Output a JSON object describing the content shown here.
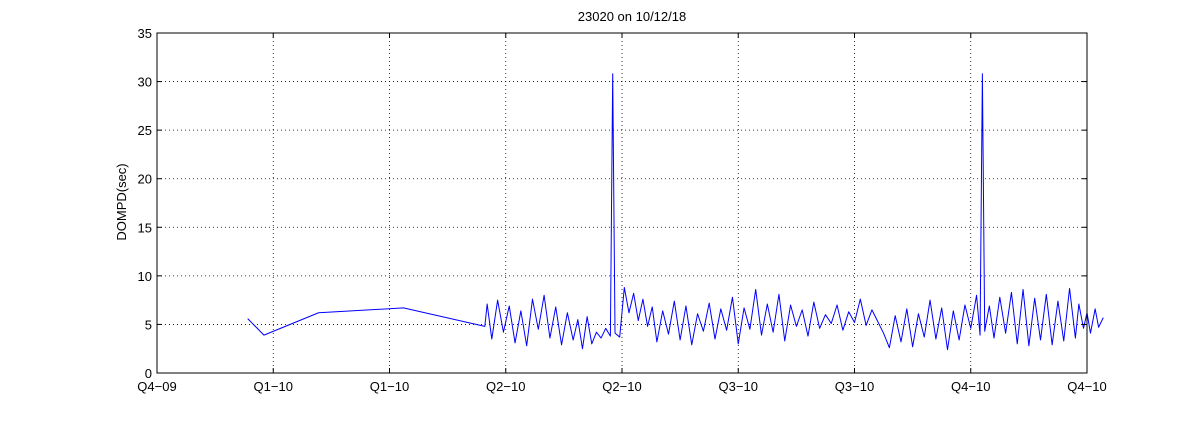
{
  "chart_data": {
    "type": "line",
    "title": "23020 on 10/12/18",
    "xlabel": "",
    "ylabel": "DOMPD(sec)",
    "x_tick_labels": [
      "Q4−09",
      "Q1−10",
      "Q1−10",
      "Q2−10",
      "Q2−10",
      "Q3−10",
      "Q3−10",
      "Q4−10",
      "Q4−10"
    ],
    "y_ticks": [
      0,
      5,
      10,
      15,
      20,
      25,
      30,
      35
    ],
    "xlim": [
      0,
      8
    ],
    "ylim": [
      0,
      35
    ],
    "grid": true,
    "line_color": "#0000ff",
    "series": [
      {
        "name": "",
        "points": [
          [
            0.78,
            5.6
          ],
          [
            0.92,
            3.9
          ],
          [
            1.39,
            6.2
          ],
          [
            2.12,
            6.7
          ],
          [
            2.82,
            4.8
          ],
          [
            2.84,
            7.1
          ],
          [
            2.88,
            3.5
          ],
          [
            2.93,
            7.5
          ],
          [
            2.98,
            4.2
          ],
          [
            3.03,
            6.9
          ],
          [
            3.08,
            3.1
          ],
          [
            3.13,
            6.4
          ],
          [
            3.18,
            2.8
          ],
          [
            3.23,
            7.6
          ],
          [
            3.28,
            4.5
          ],
          [
            3.33,
            8.0
          ],
          [
            3.38,
            3.6
          ],
          [
            3.43,
            6.8
          ],
          [
            3.48,
            2.9
          ],
          [
            3.53,
            6.2
          ],
          [
            3.58,
            3.4
          ],
          [
            3.62,
            5.5
          ],
          [
            3.66,
            2.5
          ],
          [
            3.7,
            5.8
          ],
          [
            3.74,
            3.0
          ],
          [
            3.78,
            4.2
          ],
          [
            3.82,
            3.6
          ],
          [
            3.86,
            4.6
          ],
          [
            3.9,
            3.8
          ],
          [
            3.92,
            30.8
          ],
          [
            3.94,
            4.1
          ],
          [
            3.98,
            3.7
          ],
          [
            4.02,
            8.8
          ],
          [
            4.06,
            6.2
          ],
          [
            4.1,
            8.2
          ],
          [
            4.14,
            5.4
          ],
          [
            4.18,
            7.6
          ],
          [
            4.22,
            4.8
          ],
          [
            4.26,
            6.8
          ],
          [
            4.3,
            3.2
          ],
          [
            4.35,
            6.4
          ],
          [
            4.4,
            4.0
          ],
          [
            4.45,
            7.4
          ],
          [
            4.5,
            3.4
          ],
          [
            4.55,
            6.9
          ],
          [
            4.6,
            2.9
          ],
          [
            4.65,
            6.1
          ],
          [
            4.7,
            4.3
          ],
          [
            4.75,
            7.2
          ],
          [
            4.8,
            3.5
          ],
          [
            4.85,
            6.6
          ],
          [
            4.9,
            4.4
          ],
          [
            4.95,
            7.8
          ],
          [
            5.0,
            3.0
          ],
          [
            5.05,
            6.7
          ],
          [
            5.1,
            4.5
          ],
          [
            5.15,
            8.6
          ],
          [
            5.2,
            3.9
          ],
          [
            5.25,
            7.1
          ],
          [
            5.3,
            4.2
          ],
          [
            5.35,
            8.1
          ],
          [
            5.4,
            3.3
          ],
          [
            5.45,
            7.0
          ],
          [
            5.5,
            4.8
          ],
          [
            5.55,
            6.5
          ],
          [
            5.6,
            3.8
          ],
          [
            5.65,
            7.3
          ],
          [
            5.7,
            4.6
          ],
          [
            5.75,
            6.0
          ],
          [
            5.8,
            5.1
          ],
          [
            5.85,
            7.0
          ],
          [
            5.9,
            4.4
          ],
          [
            5.95,
            6.3
          ],
          [
            6.0,
            5.2
          ],
          [
            6.05,
            7.6
          ],
          [
            6.1,
            4.9
          ],
          [
            6.15,
            6.5
          ],
          [
            6.2,
            5.3
          ],
          [
            6.25,
            4.1
          ],
          [
            6.3,
            2.6
          ],
          [
            6.35,
            5.9
          ],
          [
            6.4,
            3.2
          ],
          [
            6.45,
            6.6
          ],
          [
            6.5,
            2.7
          ],
          [
            6.55,
            6.1
          ],
          [
            6.6,
            3.7
          ],
          [
            6.65,
            7.5
          ],
          [
            6.7,
            3.5
          ],
          [
            6.75,
            6.7
          ],
          [
            6.8,
            2.4
          ],
          [
            6.85,
            6.4
          ],
          [
            6.9,
            3.4
          ],
          [
            6.95,
            7.0
          ],
          [
            7.0,
            4.6
          ],
          [
            7.05,
            8.0
          ],
          [
            7.08,
            3.9
          ],
          [
            7.1,
            30.8
          ],
          [
            7.12,
            4.3
          ],
          [
            7.16,
            6.9
          ],
          [
            7.2,
            3.6
          ],
          [
            7.25,
            7.8
          ],
          [
            7.3,
            4.1
          ],
          [
            7.35,
            8.3
          ],
          [
            7.4,
            3.0
          ],
          [
            7.45,
            8.6
          ],
          [
            7.5,
            2.8
          ],
          [
            7.55,
            7.7
          ],
          [
            7.6,
            3.4
          ],
          [
            7.65,
            8.1
          ],
          [
            7.7,
            2.9
          ],
          [
            7.75,
            7.4
          ],
          [
            7.8,
            3.3
          ],
          [
            7.85,
            8.7
          ],
          [
            7.9,
            3.6
          ],
          [
            7.93,
            7.1
          ],
          [
            7.97,
            4.6
          ],
          [
            8.0,
            6.2
          ],
          [
            8.03,
            4.1
          ],
          [
            8.07,
            6.6
          ],
          [
            8.1,
            4.7
          ],
          [
            8.14,
            5.7
          ]
        ]
      }
    ]
  }
}
